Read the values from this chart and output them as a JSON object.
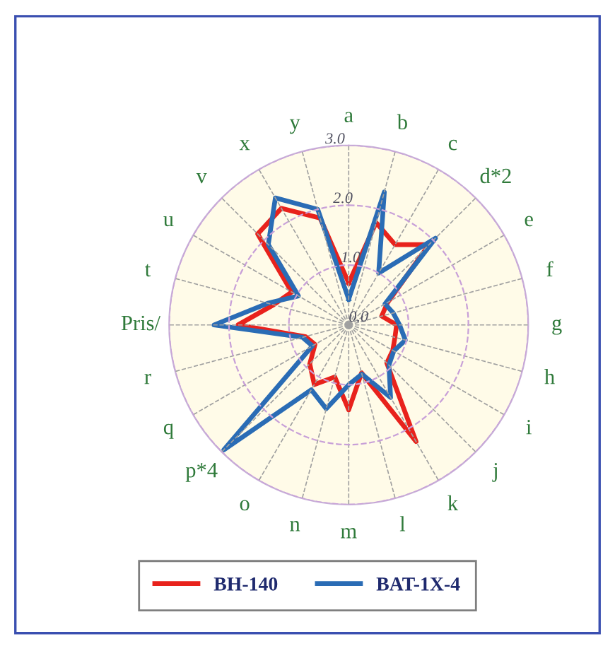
{
  "chart_data": {
    "type": "radar",
    "categories": [
      "a",
      "b",
      "c",
      "d*2",
      "e",
      "f",
      "g",
      "h",
      "i",
      "j",
      "k",
      "l",
      "m",
      "n",
      "o",
      "p*4",
      "q",
      "r",
      "Pris/",
      "t",
      "u",
      "v",
      "x",
      "y"
    ],
    "series": [
      {
        "name": "BH-140",
        "color": "#e8221c",
        "values": [
          0.7,
          1.77,
          1.55,
          1.9,
          0.75,
          0.57,
          0.8,
          0.8,
          0.85,
          0.9,
          2.25,
          0.83,
          1.42,
          0.9,
          1.15,
          0.92,
          0.65,
          0.75,
          1.85,
          1.3,
          1.1,
          2.15,
          2.25,
          1.85
        ]
      },
      {
        "name": "BAT-1X-4",
        "color": "#2a6cb5",
        "values": [
          0.43,
          2.3,
          1.0,
          2.05,
          0.7,
          0.77,
          0.85,
          0.98,
          0.87,
          0.95,
          1.4,
          0.85,
          1.0,
          1.45,
          1.25,
          2.95,
          0.7,
          0.8,
          2.25,
          1.4,
          0.97,
          1.9,
          2.45,
          2.0
        ]
      }
    ],
    "ylim": [
      0,
      3
    ],
    "yticks": [
      {
        "value": 0,
        "label": "0.0"
      },
      {
        "value": 1,
        "label": "1.0"
      },
      {
        "value": 2,
        "label": "2.0"
      },
      {
        "value": 3,
        "label": "3.0"
      }
    ],
    "grid": true,
    "legend": "bottom",
    "marker": "none",
    "line_style": "solid"
  }
}
